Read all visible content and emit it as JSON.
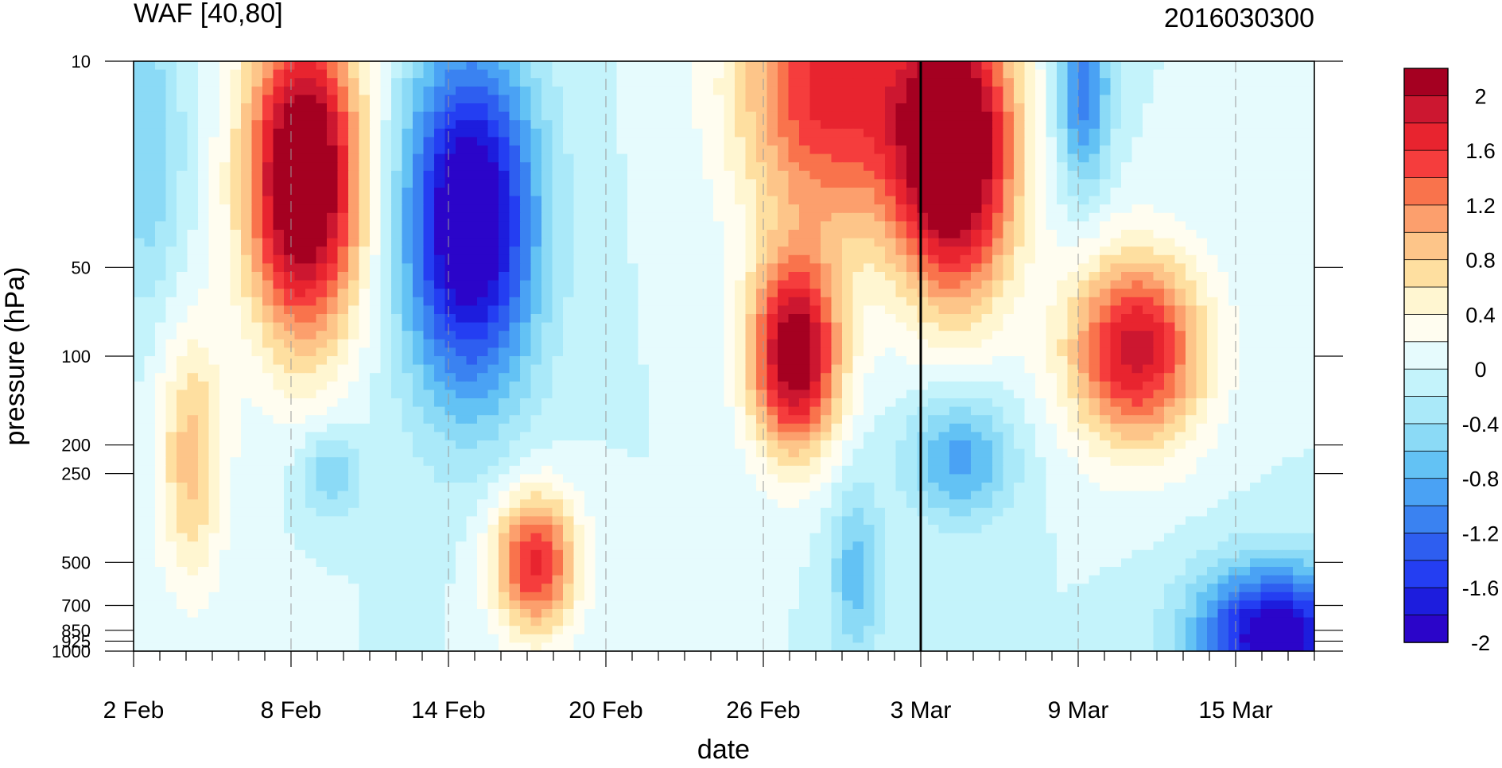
{
  "chart_data": {
    "type": "heatmap",
    "title": "WAF [40,80]",
    "subtitle": "2016030300",
    "xlabel": "date",
    "ylabel": "pressure (hPa)",
    "x_ticks": [
      "2 Feb",
      "8 Feb",
      "14 Feb",
      "20 Feb",
      "26 Feb",
      "3 Mar",
      "9 Mar",
      "15 Mar"
    ],
    "x_tick_days": [
      0,
      6,
      12,
      18,
      24,
      30,
      36,
      42
    ],
    "x_range_days": [
      0,
      45
    ],
    "current_time_marker": "3 Mar",
    "y_ticks": [
      "10",
      "50",
      "100",
      "200",
      "250",
      "500",
      "700",
      "850",
      "925",
      "1000"
    ],
    "y_tick_values": [
      10,
      50,
      100,
      200,
      250,
      500,
      700,
      850,
      925,
      1000
    ],
    "y_scale": "log",
    "y_range": [
      1000,
      10
    ],
    "colorbar": {
      "labels": [
        "2",
        "1.6",
        "1.2",
        "0.8",
        "0.4",
        "0",
        "-0.4",
        "-0.8",
        "-1.2",
        "-1.6",
        "-2"
      ],
      "levels": [
        2.2,
        2.0,
        1.8,
        1.6,
        1.4,
        1.2,
        1.0,
        0.8,
        0.6,
        0.4,
        0.2,
        0.0,
        -0.2,
        -0.4,
        -0.6,
        -0.8,
        -1.0,
        -1.2,
        -1.4,
        -1.6,
        -1.8,
        -2.0
      ],
      "colors": [
        "#a50021",
        "#cc1730",
        "#e8242f",
        "#f53d3d",
        "#f9734c",
        "#fc9f6d",
        "#fdc589",
        "#fedfa0",
        "#fff6d1",
        "#fffdf0",
        "#e6fbfd",
        "#c4f3fb",
        "#aae9f9",
        "#8bdaf6",
        "#63c2f4",
        "#4aa2f4",
        "#3a82f1",
        "#2e5ef0",
        "#243ef2",
        "#1d1ddd",
        "#2b05c9"
      ]
    },
    "features": [
      {
        "label": "Feb 4-9 positive",
        "sign": "positive",
        "day_center": 6.5,
        "p_center": 25,
        "day_halfwidth": 2.2,
        "lnp_halfwidth": 1.25,
        "peak": 2.7
      },
      {
        "label": "Feb 11-16 negative",
        "sign": "negative",
        "day_center": 12.8,
        "p_center": 35,
        "day_halfwidth": 2.5,
        "lnp_halfwidth": 1.35,
        "peak": -2.3
      },
      {
        "label": "Feb 16-18 positive",
        "sign": "positive",
        "day_center": 15.3,
        "p_center": 500,
        "day_halfwidth": 1.6,
        "lnp_halfwidth": 0.55,
        "peak": 1.7
      },
      {
        "label": "Feb 25-28 positive",
        "sign": "positive",
        "day_center": 25.2,
        "p_center": 100,
        "day_halfwidth": 1.7,
        "lnp_halfwidth": 0.75,
        "peak": 2.3
      },
      {
        "label": "Feb 22-28 upper positive",
        "sign": "positive",
        "day_center": 26.5,
        "p_center": 12,
        "day_halfwidth": 3.5,
        "lnp_halfwidth": 1.2,
        "peak": 1.7
      },
      {
        "label": "Mar 1-5 positive",
        "sign": "positive",
        "day_center": 31.3,
        "p_center": 20,
        "day_halfwidth": 2.3,
        "lnp_halfwidth": 1.15,
        "peak": 2.7
      },
      {
        "label": "Mar 8-12 positive",
        "sign": "positive",
        "day_center": 38.2,
        "p_center": 95,
        "day_halfwidth": 2.6,
        "lnp_halfwidth": 0.75,
        "peak": 1.9
      },
      {
        "label": "Mar 7-9 upper negative",
        "sign": "negative",
        "day_center": 36.2,
        "p_center": 12,
        "day_halfwidth": 1.0,
        "lnp_halfwidth": 0.8,
        "peak": -1.2
      },
      {
        "label": "Mar 15-17 surface negative",
        "sign": "negative",
        "day_center": 43.5,
        "p_center": 900,
        "day_halfwidth": 3.0,
        "lnp_halfwidth": 0.55,
        "peak": -2.1
      },
      {
        "label": "Mar 2-5 mid negative",
        "sign": "negative",
        "day_center": 31.5,
        "p_center": 220,
        "day_halfwidth": 2.0,
        "lnp_halfwidth": 0.5,
        "peak": -0.9
      },
      {
        "label": "Feb 9-10 mid negative",
        "sign": "negative",
        "day_center": 7.5,
        "p_center": 250,
        "day_halfwidth": 1.2,
        "lnp_halfwidth": 0.35,
        "peak": -0.6
      },
      {
        "label": "Feb 2-4 stratosphere negative",
        "sign": "negative",
        "day_center": 0.5,
        "p_center": 20,
        "day_halfwidth": 1.4,
        "lnp_halfwidth": 1.2,
        "peak": -0.6
      },
      {
        "label": "Feb 3-5 lower positive",
        "sign": "positive",
        "day_center": 2.2,
        "p_center": 220,
        "day_halfwidth": 1.3,
        "lnp_halfwidth": 1.0,
        "peak": 0.9
      },
      {
        "label": "Feb 28 mid negative",
        "sign": "negative",
        "day_center": 27.5,
        "p_center": 550,
        "day_halfwidth": 1.0,
        "lnp_halfwidth": 0.7,
        "peak": -0.7
      }
    ]
  }
}
